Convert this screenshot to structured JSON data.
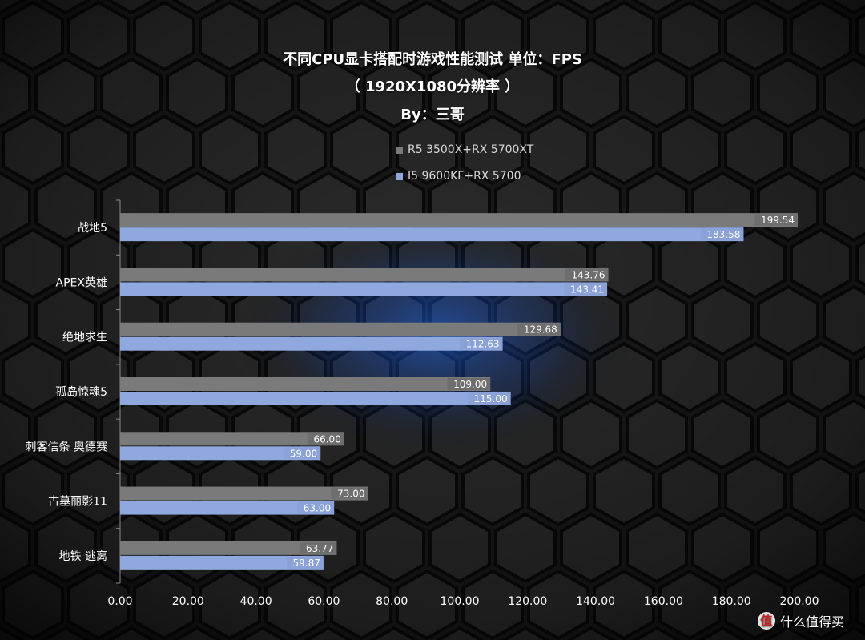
{
  "chart_data": {
    "type": "bar",
    "orientation": "horizontal",
    "title": "不同CPU显卡搭配时游戏性能测试 单位：FPS",
    "subtitle": "（ 1920X1080分辨率 ）",
    "author_line": "By：三哥",
    "categories": [
      "战地5",
      "APEX英雄",
      "绝地求生",
      "孤岛惊魂5",
      "刺客信条 奥德赛",
      "古墓丽影11",
      "地铁 逃离"
    ],
    "series": [
      {
        "name": "R5 3500X+RX 5700XT",
        "color": "#7a7a7a",
        "values": [
          199.54,
          143.76,
          129.68,
          109.0,
          66.0,
          73.0,
          63.77
        ]
      },
      {
        "name": "I5 9600KF+RX 5700",
        "color": "#8fa8de",
        "values": [
          183.58,
          143.41,
          112.63,
          115.0,
          59.0,
          63.0,
          59.87
        ]
      }
    ],
    "value_labels": [
      [
        "199.54",
        "143.76",
        "129.68",
        "109.00",
        "66.00",
        "73.00",
        "63.77"
      ],
      [
        "183.58",
        "143.41",
        "112.63",
        "115.00",
        "59.00",
        "63.00",
        "59.87"
      ]
    ],
    "xlim": [
      0,
      200
    ],
    "xticks": [
      0,
      20,
      40,
      60,
      80,
      100,
      120,
      140,
      160,
      180,
      200
    ],
    "xtick_labels": [
      "0.00",
      "20.00",
      "40.00",
      "60.00",
      "80.00",
      "100.00",
      "120.00",
      "140.00",
      "160.00",
      "180.00",
      "200.00"
    ],
    "grid": false,
    "legend_position": "top-center"
  },
  "watermark": {
    "icon": "值",
    "text": "什么值得买"
  }
}
